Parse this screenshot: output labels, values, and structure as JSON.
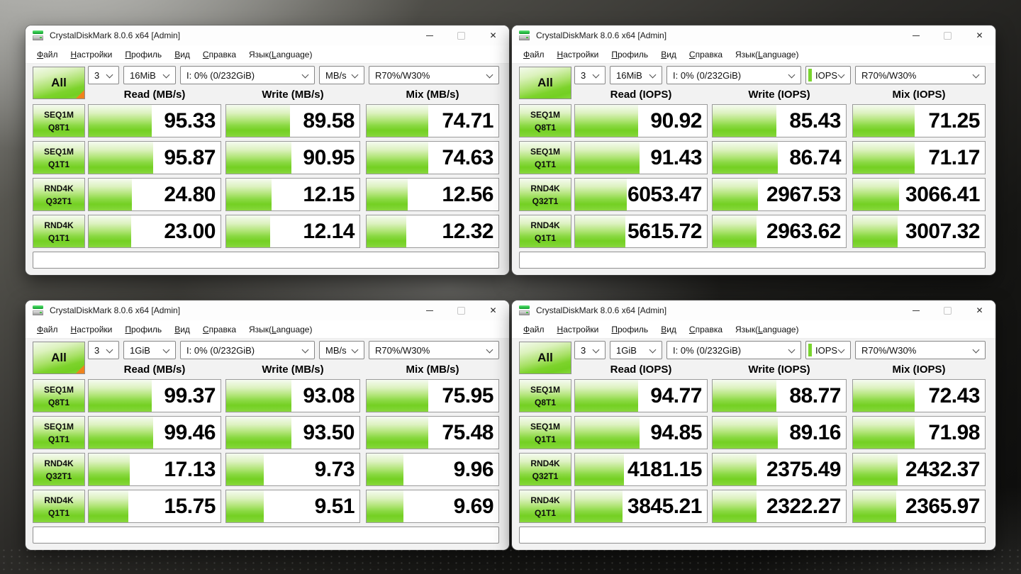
{
  "app": {
    "title": "CrystalDiskMark 8.0.6 x64 [Admin]",
    "menu": [
      {
        "label": "Файл",
        "u": 0
      },
      {
        "label": "Настройки",
        "u": 0
      },
      {
        "label": "Профиль",
        "u": 0
      },
      {
        "label": "Вид",
        "u": 0
      },
      {
        "label": "Справка",
        "u": 0
      },
      {
        "label": "Язык(Language)",
        "u": 5
      }
    ],
    "window_buttons": {
      "minimize": "minimize",
      "maximize": "maximize",
      "close": "✕"
    }
  },
  "colors": {
    "bar_green": "#74d023",
    "label_green": "#7ed431",
    "all_corner_orange": "#ef831c",
    "focus_strip_green": "#79d42e"
  },
  "windows": [
    {
      "name": "top-left",
      "controls": {
        "all": "All",
        "count": "3",
        "size": "16MiB",
        "drive": "I: 0% (0/232GiB)",
        "unit": "MB/s",
        "mix": "R70%/W30%",
        "unit_focused": false,
        "all_corner": true
      },
      "headers": [
        "Read (MB/s)",
        "Write (MB/s)",
        "Mix (MB/s)"
      ],
      "rows": [
        {
          "test": "SEQ1M",
          "queue": "Q8T1",
          "values": [
            {
              "v": "95.33",
              "fill": 48
            },
            {
              "v": "89.58",
              "fill": 48
            },
            {
              "v": "74.71",
              "fill": 47
            }
          ]
        },
        {
          "test": "SEQ1M",
          "queue": "Q1T1",
          "values": [
            {
              "v": "95.87",
              "fill": 49
            },
            {
              "v": "90.95",
              "fill": 49
            },
            {
              "v": "74.63",
              "fill": 47
            }
          ]
        },
        {
          "test": "RND4K",
          "queue": "Q32T1",
          "values": [
            {
              "v": "24.80",
              "fill": 33
            },
            {
              "v": "12.15",
              "fill": 34
            },
            {
              "v": "12.56",
              "fill": 31
            }
          ]
        },
        {
          "test": "RND4K",
          "queue": "Q1T1",
          "values": [
            {
              "v": "23.00",
              "fill": 32
            },
            {
              "v": "12.14",
              "fill": 33
            },
            {
              "v": "12.32",
              "fill": 30
            }
          ]
        }
      ],
      "comment": ""
    },
    {
      "name": "top-right",
      "controls": {
        "all": "All",
        "count": "3",
        "size": "16MiB",
        "drive": "I: 0% (0/232GiB)",
        "unit": "IOPS",
        "mix": "R70%/W30%",
        "unit_focused": true,
        "all_corner": false
      },
      "headers": [
        "Read (IOPS)",
        "Write (IOPS)",
        "Mix (IOPS)"
      ],
      "rows": [
        {
          "test": "SEQ1M",
          "queue": "Q8T1",
          "values": [
            {
              "v": "90.92",
              "fill": 48
            },
            {
              "v": "85.43",
              "fill": 48
            },
            {
              "v": "71.25",
              "fill": 47
            }
          ]
        },
        {
          "test": "SEQ1M",
          "queue": "Q1T1",
          "values": [
            {
              "v": "91.43",
              "fill": 49
            },
            {
              "v": "86.74",
              "fill": 49
            },
            {
              "v": "71.17",
              "fill": 47
            }
          ]
        },
        {
          "test": "RND4K",
          "queue": "Q32T1",
          "values": [
            {
              "v": "6053.47",
              "fill": 39
            },
            {
              "v": "2967.53",
              "fill": 34
            },
            {
              "v": "3066.41",
              "fill": 35
            }
          ]
        },
        {
          "test": "RND4K",
          "queue": "Q1T1",
          "values": [
            {
              "v": "5615.72",
              "fill": 38
            },
            {
              "v": "2963.62",
              "fill": 33
            },
            {
              "v": "3007.32",
              "fill": 34
            }
          ]
        }
      ],
      "comment": ""
    },
    {
      "name": "bottom-left",
      "controls": {
        "all": "All",
        "count": "3",
        "size": "1GiB",
        "drive": "I: 0% (0/232GiB)",
        "unit": "MB/s",
        "mix": "R70%/W30%",
        "unit_focused": false,
        "all_corner": true
      },
      "headers": [
        "Read (MB/s)",
        "Write (MB/s)",
        "Mix (MB/s)"
      ],
      "rows": [
        {
          "test": "SEQ1M",
          "queue": "Q8T1",
          "values": [
            {
              "v": "99.37",
              "fill": 48
            },
            {
              "v": "93.08",
              "fill": 49
            },
            {
              "v": "75.95",
              "fill": 47
            }
          ]
        },
        {
          "test": "SEQ1M",
          "queue": "Q1T1",
          "values": [
            {
              "v": "99.46",
              "fill": 49
            },
            {
              "v": "93.50",
              "fill": 49
            },
            {
              "v": "75.48",
              "fill": 47
            }
          ]
        },
        {
          "test": "RND4K",
          "queue": "Q32T1",
          "values": [
            {
              "v": "17.13",
              "fill": 31
            },
            {
              "v": "9.73",
              "fill": 28
            },
            {
              "v": "9.96",
              "fill": 28
            }
          ]
        },
        {
          "test": "RND4K",
          "queue": "Q1T1",
          "values": [
            {
              "v": "15.75",
              "fill": 30
            },
            {
              "v": "9.51",
              "fill": 28
            },
            {
              "v": "9.69",
              "fill": 28
            }
          ]
        }
      ],
      "comment": ""
    },
    {
      "name": "bottom-right",
      "controls": {
        "all": "All",
        "count": "3",
        "size": "1GiB",
        "drive": "I: 0% (0/232GiB)",
        "unit": "IOPS",
        "mix": "R70%/W30%",
        "unit_focused": true,
        "all_corner": false
      },
      "headers": [
        "Read (IOPS)",
        "Write (IOPS)",
        "Mix (IOPS)"
      ],
      "rows": [
        {
          "test": "SEQ1M",
          "queue": "Q8T1",
          "values": [
            {
              "v": "94.77",
              "fill": 48
            },
            {
              "v": "88.77",
              "fill": 48
            },
            {
              "v": "72.43",
              "fill": 47
            }
          ]
        },
        {
          "test": "SEQ1M",
          "queue": "Q1T1",
          "values": [
            {
              "v": "94.85",
              "fill": 49
            },
            {
              "v": "89.16",
              "fill": 49
            },
            {
              "v": "71.98",
              "fill": 47
            }
          ]
        },
        {
          "test": "RND4K",
          "queue": "Q32T1",
          "values": [
            {
              "v": "4181.15",
              "fill": 37
            },
            {
              "v": "2375.49",
              "fill": 33
            },
            {
              "v": "2432.37",
              "fill": 34
            }
          ]
        },
        {
          "test": "RND4K",
          "queue": "Q1T1",
          "values": [
            {
              "v": "3845.21",
              "fill": 36
            },
            {
              "v": "2322.27",
              "fill": 33
            },
            {
              "v": "2365.97",
              "fill": 33
            }
          ]
        }
      ],
      "comment": ""
    }
  ]
}
